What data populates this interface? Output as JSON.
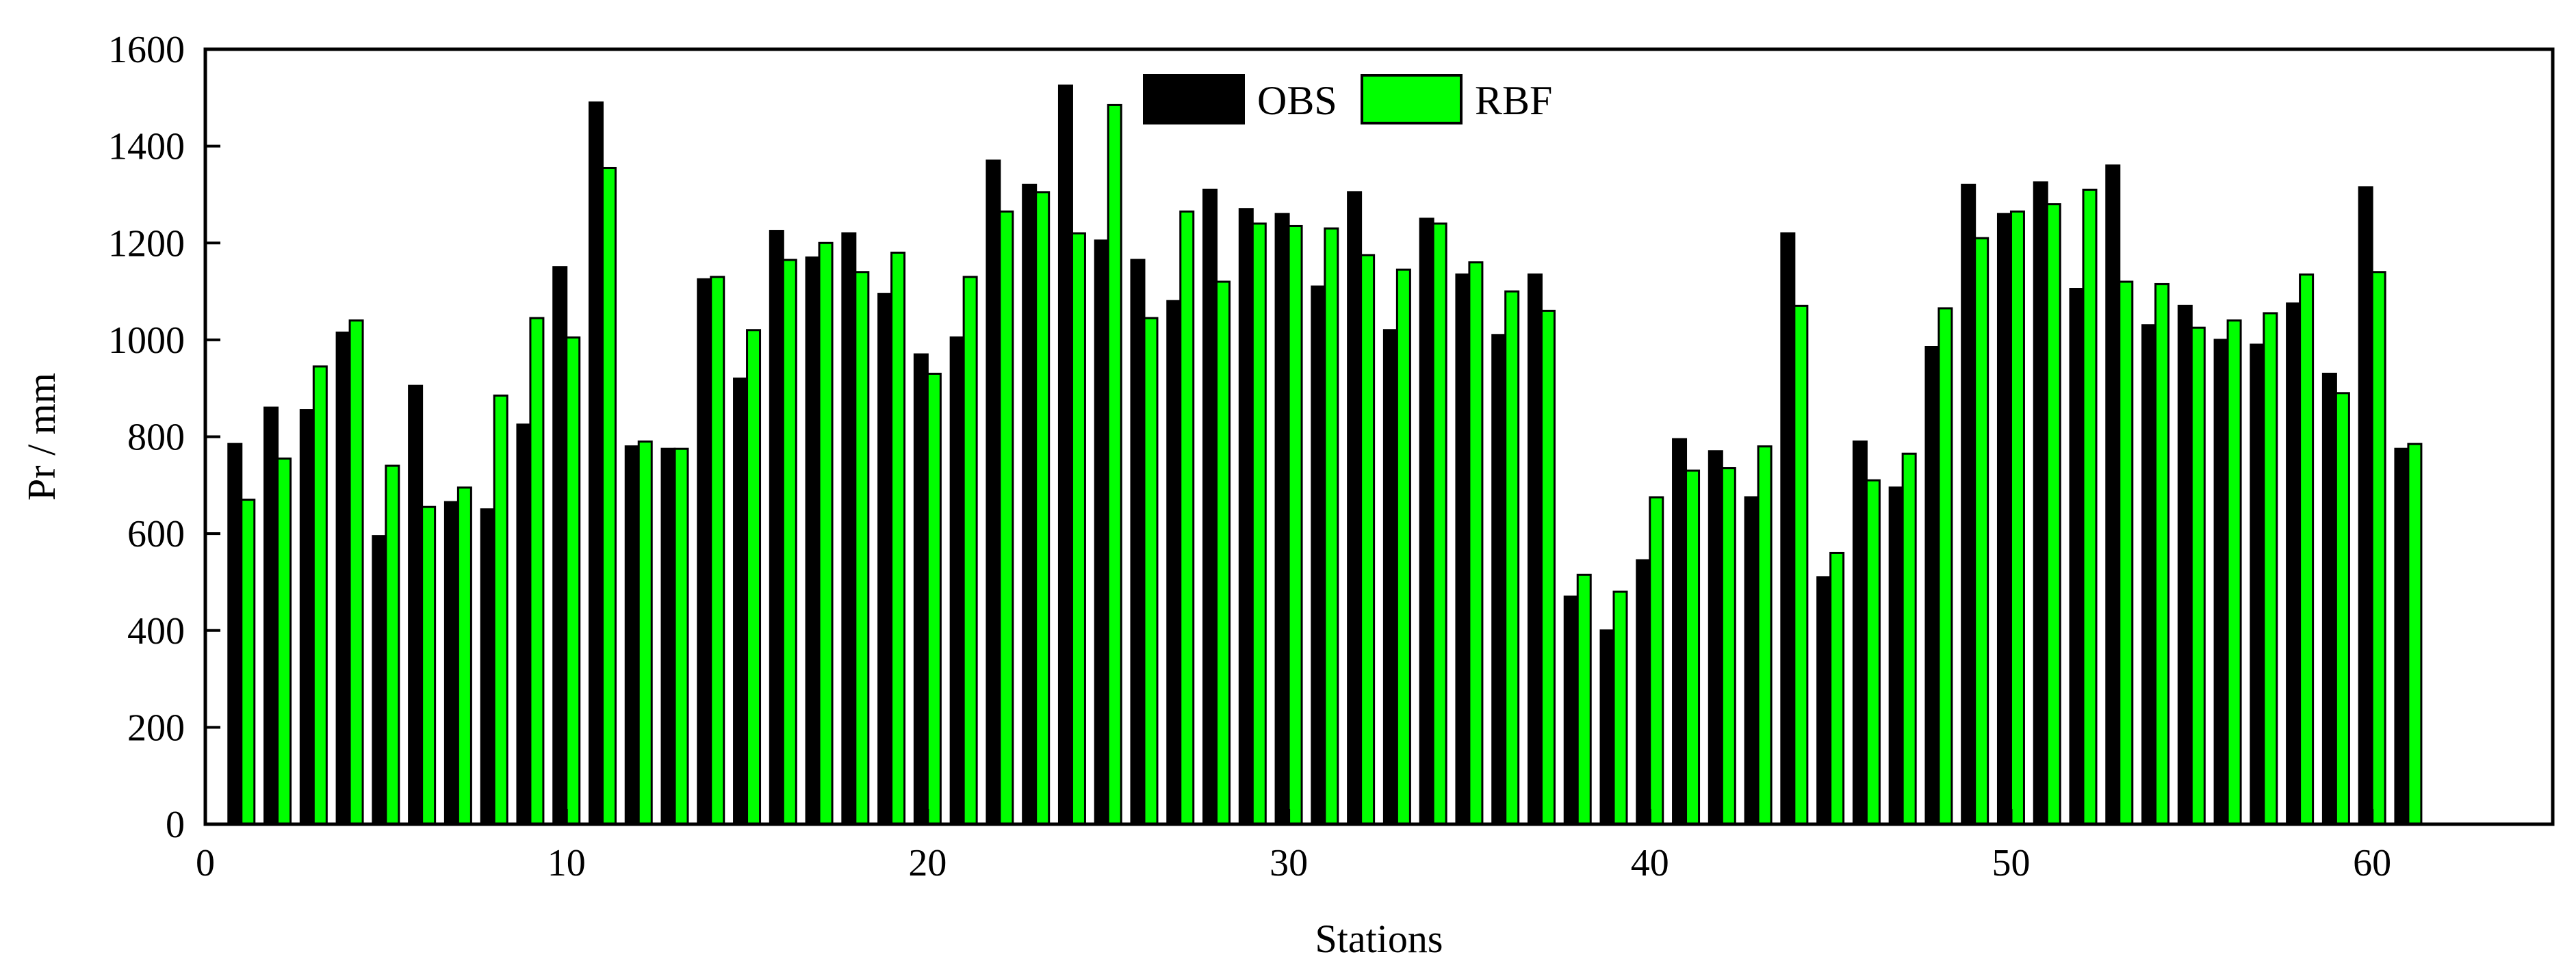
{
  "chart_data": {
    "type": "bar",
    "xlabel": "Stations",
    "ylabel": "Pr / mm",
    "xlim": [
      0,
      65
    ],
    "ylim": [
      0,
      1600
    ],
    "x_ticks": [
      0,
      10,
      20,
      30,
      40,
      50,
      60
    ],
    "y_ticks": [
      0,
      200,
      400,
      600,
      800,
      1000,
      1200,
      1400,
      1600
    ],
    "grid": false,
    "legend": "top-center",
    "x": [
      1,
      2,
      3,
      4,
      5,
      6,
      7,
      8,
      9,
      10,
      11,
      12,
      13,
      14,
      15,
      16,
      17,
      18,
      19,
      20,
      21,
      22,
      23,
      24,
      25,
      26,
      27,
      28,
      29,
      30,
      31,
      32,
      33,
      34,
      35,
      36,
      37,
      38,
      39,
      40,
      41,
      42,
      43,
      44,
      45,
      46,
      47,
      48,
      49,
      50,
      51,
      52,
      53,
      54,
      55,
      56,
      57,
      58,
      59,
      60,
      61
    ],
    "series": [
      {
        "name": "OBS",
        "color": "#000000",
        "values": [
          785,
          860,
          855,
          1015,
          595,
          905,
          665,
          650,
          825,
          1150,
          1490,
          780,
          775,
          1125,
          920,
          1225,
          1170,
          1220,
          1095,
          970,
          1005,
          1370,
          1320,
          1525,
          1205,
          1165,
          1080,
          1310,
          1270,
          1260,
          1110,
          1305,
          1020,
          1250,
          1135,
          1010,
          1135,
          470,
          400,
          545,
          795,
          770,
          675,
          1220,
          510,
          790,
          695,
          985,
          1320,
          1260,
          1325,
          1105,
          1360,
          1030,
          1070,
          1000,
          990,
          1075,
          930,
          1315,
          775
        ]
      },
      {
        "name": "RBF",
        "color": "#00ff00",
        "values": [
          670,
          755,
          945,
          1040,
          740,
          655,
          695,
          885,
          1045,
          1005,
          1355,
          790,
          775,
          1130,
          1020,
          1165,
          1200,
          1140,
          1180,
          930,
          1130,
          1265,
          1305,
          1220,
          1485,
          1045,
          1265,
          1120,
          1240,
          1235,
          1230,
          1175,
          1145,
          1240,
          1160,
          1100,
          1060,
          515,
          480,
          675,
          730,
          735,
          780,
          1070,
          560,
          710,
          765,
          1065,
          1210,
          1265,
          1280,
          1310,
          1120,
          1115,
          1025,
          1040,
          1055,
          1135,
          890,
          1140,
          785
        ]
      }
    ]
  }
}
